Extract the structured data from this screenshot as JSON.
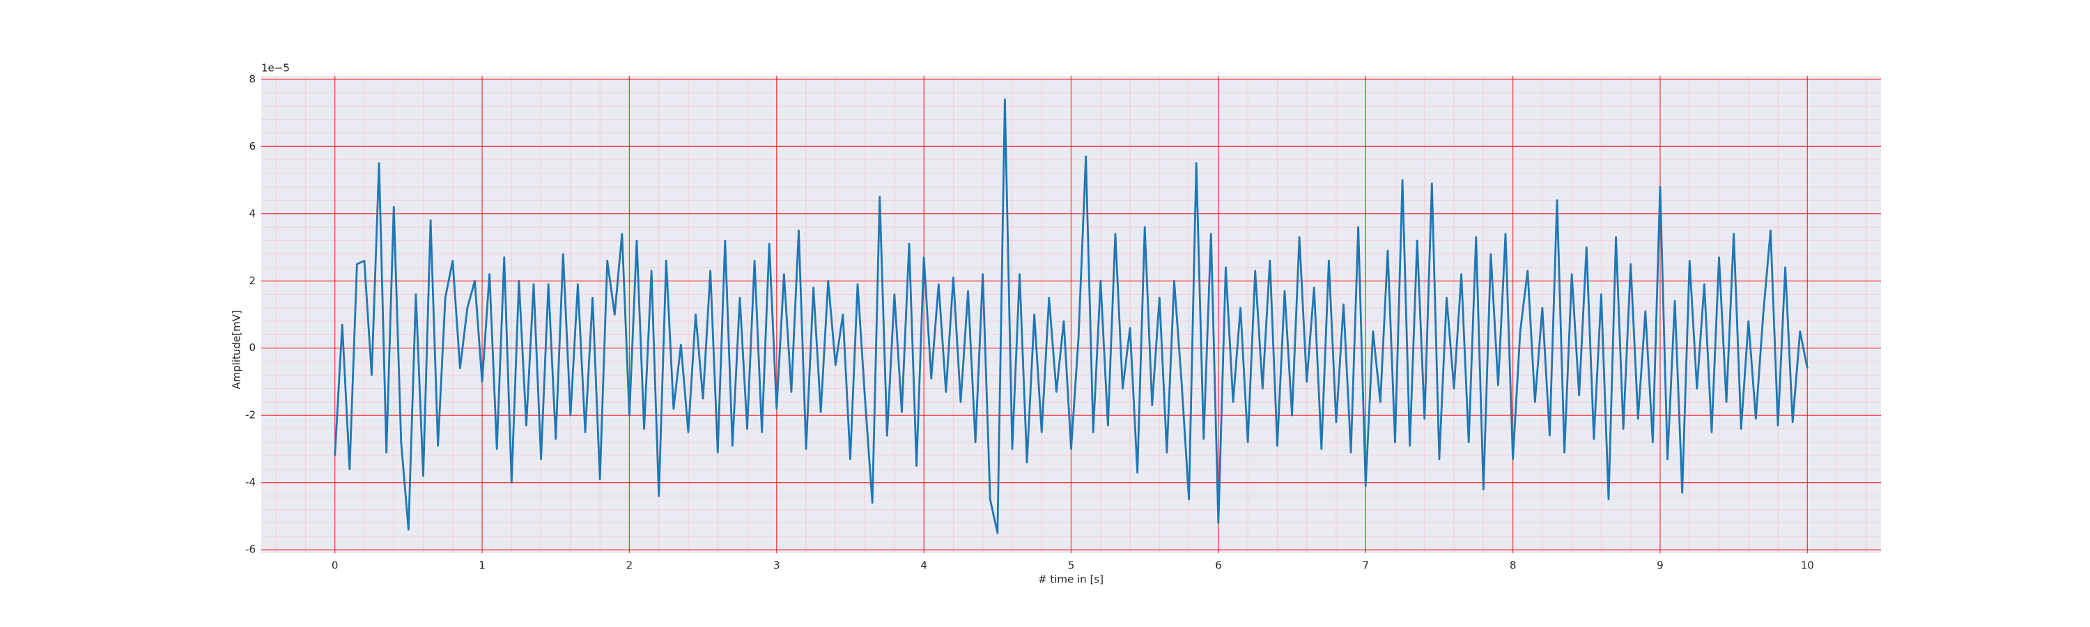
{
  "chart_data": {
    "type": "line",
    "xlabel": "# time in [s]",
    "ylabel": "Amplitude[mV]",
    "y_offset_label": "1e−5",
    "x": [
      0,
      0.05,
      0.1,
      0.15,
      0.2,
      0.25,
      0.3,
      0.35,
      0.4,
      0.45,
      0.5,
      0.55,
      0.6,
      0.65,
      0.7,
      0.75,
      0.8,
      0.85,
      0.9,
      0.95,
      1,
      1.05,
      1.1,
      1.15,
      1.2,
      1.25,
      1.3,
      1.35,
      1.4,
      1.45,
      1.5,
      1.55,
      1.6,
      1.65,
      1.7,
      1.75,
      1.8,
      1.85,
      1.9,
      1.95,
      2,
      2.05,
      2.1,
      2.15,
      2.2,
      2.25,
      2.3,
      2.35,
      2.4,
      2.45,
      2.5,
      2.55,
      2.6,
      2.65,
      2.7,
      2.75,
      2.8,
      2.85,
      2.9,
      2.95,
      3,
      3.05,
      3.1,
      3.15,
      3.2,
      3.25,
      3.3,
      3.35,
      3.4,
      3.45,
      3.5,
      3.55,
      3.6,
      3.65,
      3.7,
      3.75,
      3.8,
      3.85,
      3.9,
      3.95,
      4,
      4.05,
      4.1,
      4.15,
      4.2,
      4.25,
      4.3,
      4.35,
      4.4,
      4.45,
      4.5,
      4.55,
      4.6,
      4.65,
      4.7,
      4.75,
      4.8,
      4.85,
      4.9,
      4.95,
      5,
      5.05,
      5.1,
      5.15,
      5.2,
      5.25,
      5.3,
      5.35,
      5.4,
      5.45,
      5.5,
      5.55,
      5.6,
      5.65,
      5.7,
      5.75,
      5.8,
      5.85,
      5.9,
      5.95,
      6,
      6.05,
      6.1,
      6.15,
      6.2,
      6.25,
      6.3,
      6.35,
      6.4,
      6.45,
      6.5,
      6.55,
      6.6,
      6.65,
      6.7,
      6.75,
      6.8,
      6.85,
      6.9,
      6.95,
      7,
      7.05,
      7.1,
      7.15,
      7.2,
      7.25,
      7.3,
      7.35,
      7.4,
      7.45,
      7.5,
      7.55,
      7.6,
      7.65,
      7.7,
      7.75,
      7.8,
      7.85,
      7.9,
      7.95,
      8,
      8.05,
      8.1,
      8.15,
      8.2,
      8.25,
      8.3,
      8.35,
      8.4,
      8.45,
      8.5,
      8.55,
      8.6,
      8.65,
      8.7,
      8.75,
      8.8,
      8.85,
      8.9,
      8.95,
      9,
      9.05,
      9.1,
      9.15,
      9.2,
      9.25,
      9.3,
      9.35,
      9.4,
      9.45,
      9.5,
      9.55,
      9.6,
      9.65,
      9.7,
      9.75,
      9.8,
      9.85,
      9.9,
      9.95,
      10
    ],
    "series": [
      {
        "color": "#1f77b4",
        "values": [
          -3.2,
          0.7,
          -3.6,
          2.5,
          2.6,
          -0.8,
          5.5,
          -3.1,
          4.2,
          -2.8,
          -5.4,
          1.6,
          -3.8,
          3.8,
          -2.9,
          1.5,
          2.6,
          -0.6,
          1.2,
          2.0,
          -1.0,
          2.2,
          -3.0,
          2.7,
          -4.0,
          2.0,
          -2.3,
          1.9,
          -3.3,
          1.9,
          -2.7,
          2.8,
          -2.0,
          1.9,
          -2.5,
          1.5,
          -3.9,
          2.6,
          1.0,
          3.4,
          -2.0,
          3.2,
          -2.4,
          2.3,
          -4.4,
          2.6,
          -1.8,
          0.1,
          -2.5,
          1.0,
          -1.5,
          2.3,
          -3.1,
          3.2,
          -2.9,
          1.5,
          -2.4,
          2.6,
          -2.5,
          3.1,
          -1.8,
          2.2,
          -1.3,
          3.5,
          -3.0,
          1.8,
          -1.9,
          2.0,
          -0.5,
          1.0,
          -3.3,
          1.9,
          -1.5,
          -4.6,
          4.5,
          -2.6,
          1.6,
          -1.9,
          3.1,
          -3.5,
          2.7,
          -0.9,
          1.9,
          -1.3,
          2.1,
          -1.6,
          1.7,
          -2.8,
          2.2,
          -4.5,
          -5.5,
          7.4,
          -3.0,
          2.2,
          -3.4,
          1.0,
          -2.5,
          1.5,
          -1.3,
          0.8,
          -3.0,
          0.3,
          5.7,
          -2.5,
          2.0,
          -2.3,
          3.4,
          -1.2,
          0.6,
          -3.7,
          3.6,
          -1.7,
          1.5,
          -3.1,
          2.0,
          -1.0,
          -4.5,
          5.5,
          -2.7,
          3.4,
          -5.2,
          2.4,
          -1.6,
          1.2,
          -2.8,
          2.3,
          -1.2,
          2.6,
          -2.9,
          1.7,
          -2.0,
          3.3,
          -1.0,
          1.8,
          -3.0,
          2.6,
          -2.2,
          1.3,
          -3.1,
          3.6,
          -4.1,
          0.5,
          -1.6,
          2.9,
          -2.8,
          5.0,
          -2.9,
          3.2,
          -2.1,
          4.9,
          -3.3,
          1.5,
          -1.2,
          2.2,
          -2.8,
          3.3,
          -4.2,
          2.8,
          -1.1,
          3.4,
          -3.3,
          0.5,
          2.3,
          -1.6,
          1.2,
          -2.6,
          4.4,
          -3.1,
          2.2,
          -1.4,
          3.0,
          -2.7,
          1.6,
          -4.5,
          3.3,
          -2.4,
          2.5,
          -2.1,
          1.1,
          -2.8,
          4.8,
          -3.3,
          1.4,
          -4.3,
          2.6,
          -1.2,
          1.9,
          -2.5,
          2.7,
          -1.6,
          3.4,
          -2.4,
          0.8,
          -2.1,
          1.0,
          3.5,
          -2.3,
          2.4,
          -2.2,
          0.5,
          -0.6
        ]
      }
    ],
    "xlim": [
      -0.5,
      10.5
    ],
    "ylim": [
      -6.1,
      8.1
    ],
    "xticks": [
      0,
      1,
      2,
      3,
      4,
      5,
      6,
      7,
      8,
      9,
      10
    ],
    "yticks": [
      -6,
      -4,
      -2,
      0,
      2,
      4,
      6,
      8
    ],
    "grid": true,
    "grid_color": "#ff0000",
    "minor_grid": true,
    "minor_grid_color": "#ffb0b0",
    "background": "#eaeaf2"
  }
}
